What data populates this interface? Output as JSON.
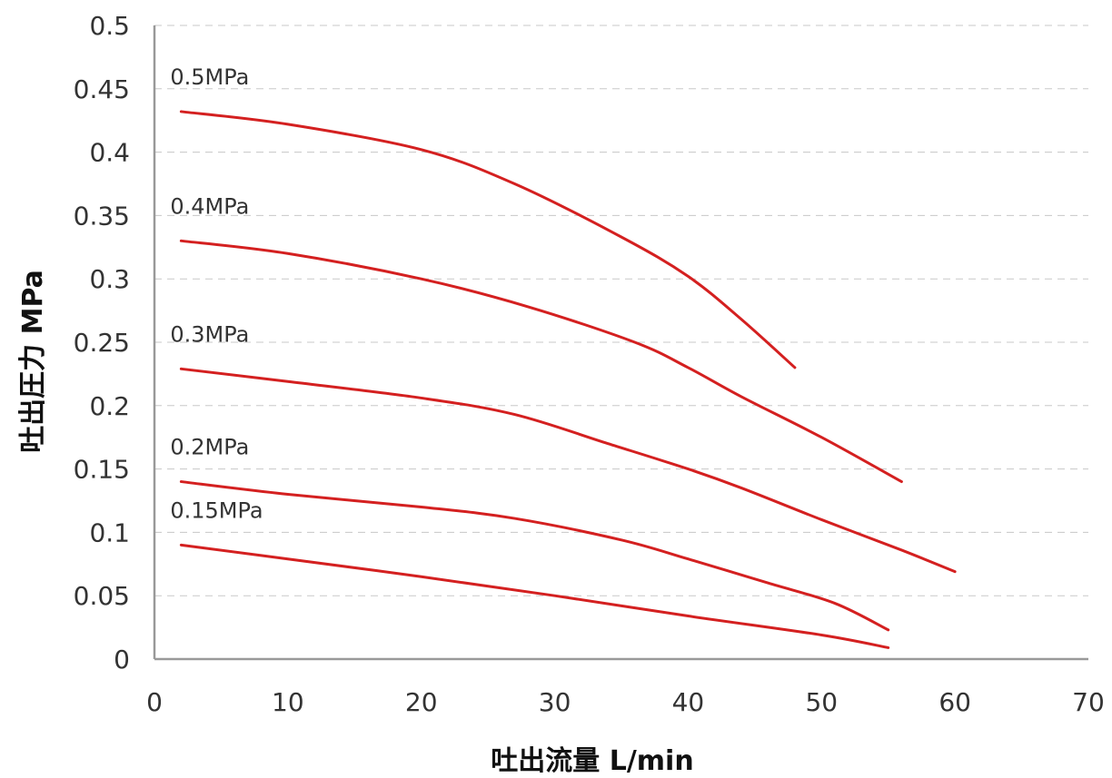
{
  "chart_data": {
    "type": "line",
    "title": "",
    "xlabel": "吐出流量 L/min",
    "ylabel": "吐出圧力 MPa",
    "xlim": [
      0,
      70
    ],
    "ylim": [
      0,
      0.5
    ],
    "xticks": [
      "0",
      "10",
      "20",
      "30",
      "40",
      "50",
      "60",
      "70"
    ],
    "yticks": [
      "0",
      "0.05",
      "0.1",
      "0.15",
      "0.2",
      "0.25",
      "0.3",
      "0.35",
      "0.4",
      "0.45",
      "0.5"
    ],
    "grid": "horizontal-dashed",
    "line_color": "#d42020",
    "series": [
      {
        "name": "0.5MPa",
        "x": [
          2,
          10,
          20,
          27,
          35,
          40,
          44,
          48
        ],
        "y": [
          0.432,
          0.422,
          0.402,
          0.375,
          0.333,
          0.302,
          0.268,
          0.23
        ]
      },
      {
        "name": "0.4MPa",
        "x": [
          2,
          10,
          20,
          28,
          36,
          40,
          44,
          50,
          56
        ],
        "y": [
          0.33,
          0.32,
          0.3,
          0.278,
          0.25,
          0.23,
          0.207,
          0.175,
          0.14
        ]
      },
      {
        "name": "0.3MPa",
        "x": [
          2,
          10,
          20,
          27,
          34,
          40,
          44,
          50,
          56,
          60
        ],
        "y": [
          0.229,
          0.219,
          0.206,
          0.193,
          0.17,
          0.15,
          0.135,
          0.11,
          0.086,
          0.069
        ]
      },
      {
        "name": "0.2MPa",
        "x": [
          2,
          10,
          20,
          27,
          35,
          40,
          46,
          51,
          55
        ],
        "y": [
          0.14,
          0.13,
          0.12,
          0.111,
          0.094,
          0.079,
          0.06,
          0.044,
          0.023
        ]
      },
      {
        "name": "0.15MPa",
        "x": [
          2,
          10,
          20,
          30,
          40,
          50,
          55
        ],
        "y": [
          0.09,
          0.079,
          0.065,
          0.05,
          0.034,
          0.019,
          0.009
        ]
      }
    ]
  }
}
